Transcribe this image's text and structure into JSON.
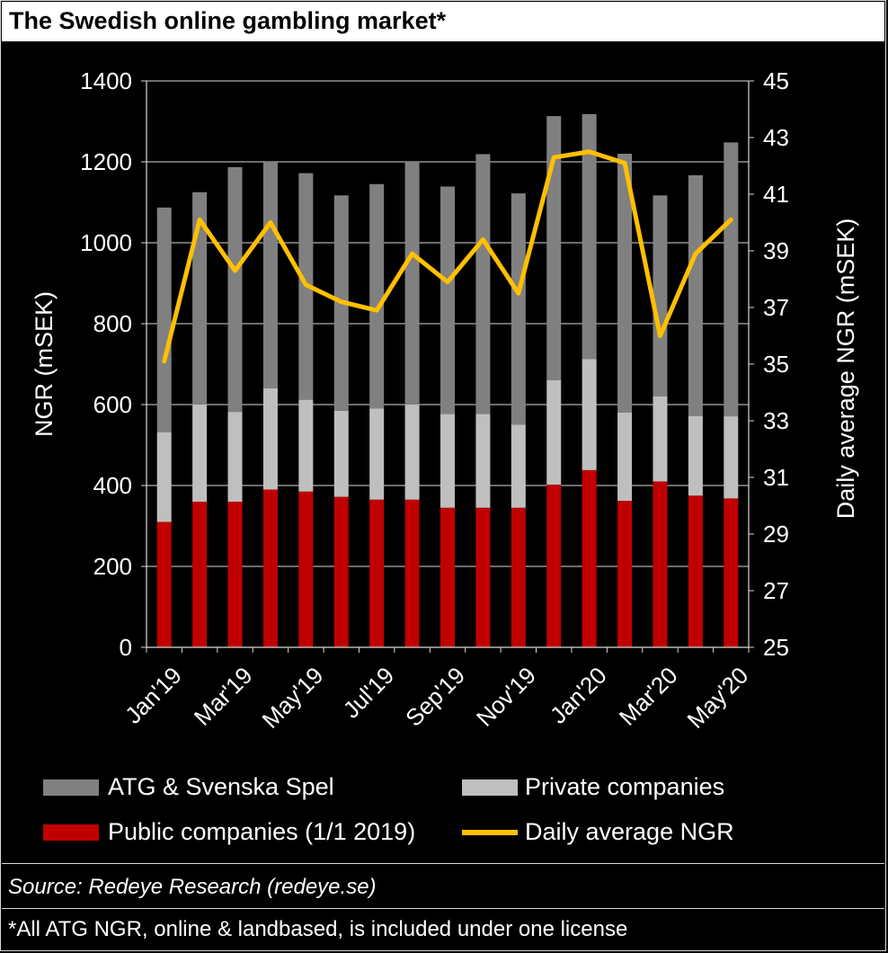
{
  "title": "The Swedish online gambling market*",
  "source": "Source: Redeye Research (redeye.se)",
  "footnote": "*All ATG NGR, online & landbased, is included under one license",
  "chart_data": {
    "type": "bar",
    "stacked": true,
    "categories": [
      "Jan'19",
      "Feb'19",
      "Mar'19",
      "Apr'19",
      "May'19",
      "Jun'19",
      "Jul'19",
      "Aug'19",
      "Sep'19",
      "Oct'19",
      "Nov'19",
      "Dec'19",
      "Jan'20",
      "Feb'20",
      "Mar'20",
      "Apr'20",
      "May'20"
    ],
    "x_tick_labels": [
      "Jan'19",
      "Mar'19",
      "May'19",
      "Jul'19",
      "Sep'19",
      "Nov'19",
      "Jan'20",
      "Mar'20",
      "May'20"
    ],
    "series": [
      {
        "name": "Public companies (1/1 2019)",
        "axis": "left",
        "color": "#c00000",
        "values": [
          310,
          360,
          360,
          390,
          385,
          372,
          365,
          365,
          345,
          345,
          345,
          402,
          438,
          362,
          410,
          375,
          368
        ]
      },
      {
        "name": "Private companies",
        "axis": "left",
        "color": "#bfbfbf",
        "values": [
          222,
          240,
          222,
          250,
          227,
          213,
          225,
          235,
          232,
          232,
          205,
          258,
          275,
          218,
          210,
          197,
          203
        ]
      },
      {
        "name": "ATG & Svenska Spel",
        "axis": "left",
        "color": "#808080",
        "values": [
          555,
          525,
          605,
          560,
          560,
          532,
          555,
          600,
          562,
          642,
          572,
          653,
          605,
          640,
          497,
          595,
          677
        ]
      },
      {
        "name": "Daily average NGR",
        "axis": "right",
        "type": "line",
        "color": "#ffc000",
        "values": [
          35.1,
          40.1,
          38.3,
          40.0,
          37.8,
          37.2,
          36.9,
          38.9,
          37.9,
          39.4,
          37.5,
          42.3,
          42.5,
          42.1,
          36.0,
          38.9,
          40.1
        ]
      }
    ],
    "ylabel": "NGR (mSEK)",
    "ylim": [
      0,
      1400
    ],
    "yticks": [
      0,
      200,
      400,
      600,
      800,
      1000,
      1200,
      1400
    ],
    "y2label": "Daily average NGR (mSEK)",
    "y2lim": [
      25,
      45
    ],
    "y2ticks": [
      25,
      27,
      29,
      31,
      33,
      35,
      37,
      39,
      41,
      43,
      45
    ],
    "grid": "horizontal",
    "legend_position": "bottom",
    "legend_order": [
      "ATG & Svenska Spel",
      "Private companies",
      "Public companies (1/1 2019)",
      "Daily average NGR"
    ]
  }
}
